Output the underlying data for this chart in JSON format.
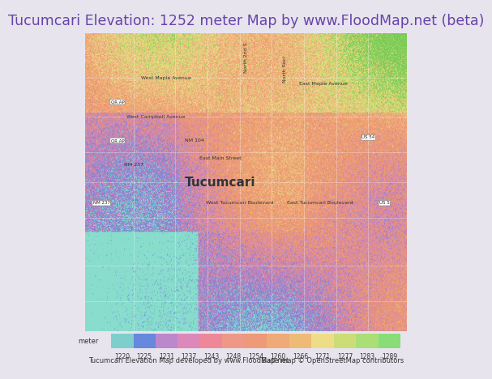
{
  "title": "Tucumcari Elevation: 1252 meter Map by www.FloodMap.net (beta)",
  "title_color": "#6644aa",
  "title_fontsize": 12.5,
  "title_bg": "#e8e4ee",
  "colorbar_values": [
    1220,
    1225,
    1231,
    1237,
    1243,
    1248,
    1254,
    1260,
    1266,
    1271,
    1277,
    1283,
    1289
  ],
  "colorbar_colors": [
    "#7ecfcc",
    "#6688dd",
    "#bb88cc",
    "#dd88bb",
    "#ee8899",
    "#ee9988",
    "#ee9977",
    "#eeaa77",
    "#eebb77",
    "#eedd88",
    "#ccdd77",
    "#aade77",
    "#88dd77"
  ],
  "bottom_text_left": "Tucumcari Elevation Map developed by www.FloodMap.net",
  "bottom_text_right": "Base map © OpenStreetMap contributors",
  "map_image_placeholder": true,
  "fig_width": 5.12,
  "fig_height": 5.82,
  "map_bg_colors": {
    "purple_light": "#cc99dd",
    "purple_mid": "#bb77cc",
    "orange": "#ee9966",
    "yellow": "#eecc55",
    "green": "#77cc66",
    "blue": "#6688ee",
    "pink": "#ee7799",
    "teal": "#77ccbb"
  }
}
